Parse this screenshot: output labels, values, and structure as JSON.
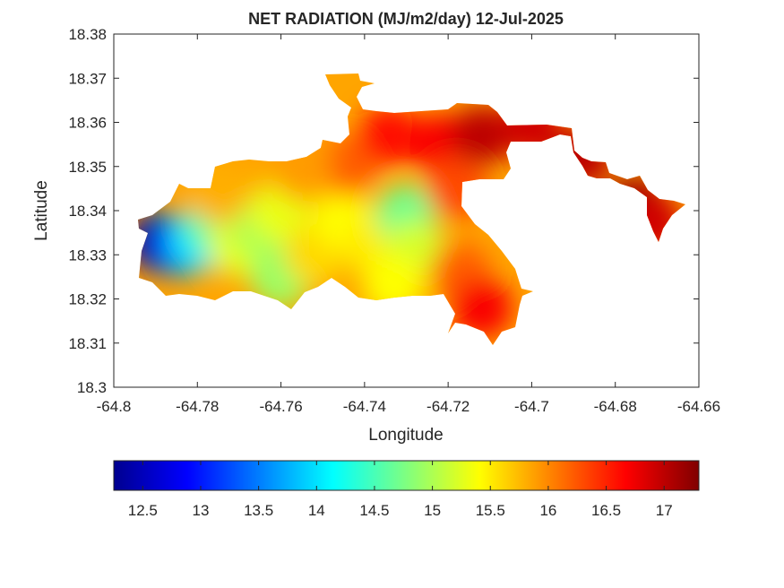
{
  "chart_data": {
    "type": "heatmap",
    "title": "NET RADIATION (MJ/m2/day) 12-Jul-2025",
    "xlabel": "Longitude",
    "ylabel": "Latitude",
    "xlim": [
      -64.8,
      -64.66
    ],
    "ylim": [
      18.3,
      18.38
    ],
    "x_ticks": [
      "-64.8",
      "-64.78",
      "-64.76",
      "-64.74",
      "-64.72",
      "-64.7",
      "-64.68",
      "-64.66"
    ],
    "y_ticks": [
      "18.3",
      "18.31",
      "18.32",
      "18.33",
      "18.34",
      "18.35",
      "18.36",
      "18.37",
      "18.38"
    ],
    "grid": false,
    "colormap": "jet",
    "colorbar": {
      "orientation": "horizontal",
      "range": [
        12.25,
        17.3
      ],
      "ticks": [
        "12.5",
        "13",
        "13.5",
        "14",
        "14.5",
        "15",
        "15.5",
        "16",
        "16.5",
        "17"
      ]
    },
    "field_points": [
      {
        "lon": -64.789,
        "lat": 18.333,
        "value": 12.4
      },
      {
        "lon": -64.784,
        "lat": 18.332,
        "value": 13.0
      },
      {
        "lon": -64.78,
        "lat": 18.333,
        "value": 14.0
      },
      {
        "lon": -64.776,
        "lat": 18.337,
        "value": 14.6
      },
      {
        "lon": -64.77,
        "lat": 18.332,
        "value": 15.3
      },
      {
        "lon": -64.765,
        "lat": 18.336,
        "value": 15.0
      },
      {
        "lon": -64.76,
        "lat": 18.34,
        "value": 15.3
      },
      {
        "lon": -64.76,
        "lat": 18.325,
        "value": 14.9
      },
      {
        "lon": -64.752,
        "lat": 18.33,
        "value": 15.6
      },
      {
        "lon": -64.745,
        "lat": 18.338,
        "value": 15.4
      },
      {
        "lon": -64.738,
        "lat": 18.332,
        "value": 15.5
      },
      {
        "lon": -64.73,
        "lat": 18.339,
        "value": 14.7
      },
      {
        "lon": -64.728,
        "lat": 18.331,
        "value": 15.2
      },
      {
        "lon": -64.733,
        "lat": 18.323,
        "value": 15.4
      },
      {
        "lon": -64.744,
        "lat": 18.35,
        "value": 16.2
      },
      {
        "lon": -64.755,
        "lat": 18.349,
        "value": 15.9
      },
      {
        "lon": -64.775,
        "lat": 18.344,
        "value": 15.8
      },
      {
        "lon": -64.734,
        "lat": 18.357,
        "value": 16.6
      },
      {
        "lon": -64.722,
        "lat": 18.355,
        "value": 16.7
      },
      {
        "lon": -64.712,
        "lat": 18.357,
        "value": 17.0
      },
      {
        "lon": -64.718,
        "lat": 18.345,
        "value": 16.3
      },
      {
        "lon": -64.717,
        "lat": 18.326,
        "value": 16.2
      },
      {
        "lon": -64.712,
        "lat": 18.318,
        "value": 16.7
      },
      {
        "lon": -64.7,
        "lat": 18.359,
        "value": 16.9
      },
      {
        "lon": -64.688,
        "lat": 18.352,
        "value": 17.0
      },
      {
        "lon": -64.675,
        "lat": 18.341,
        "value": 17.2
      },
      {
        "lon": -64.671,
        "lat": 18.337,
        "value": 16.9
      }
    ]
  }
}
